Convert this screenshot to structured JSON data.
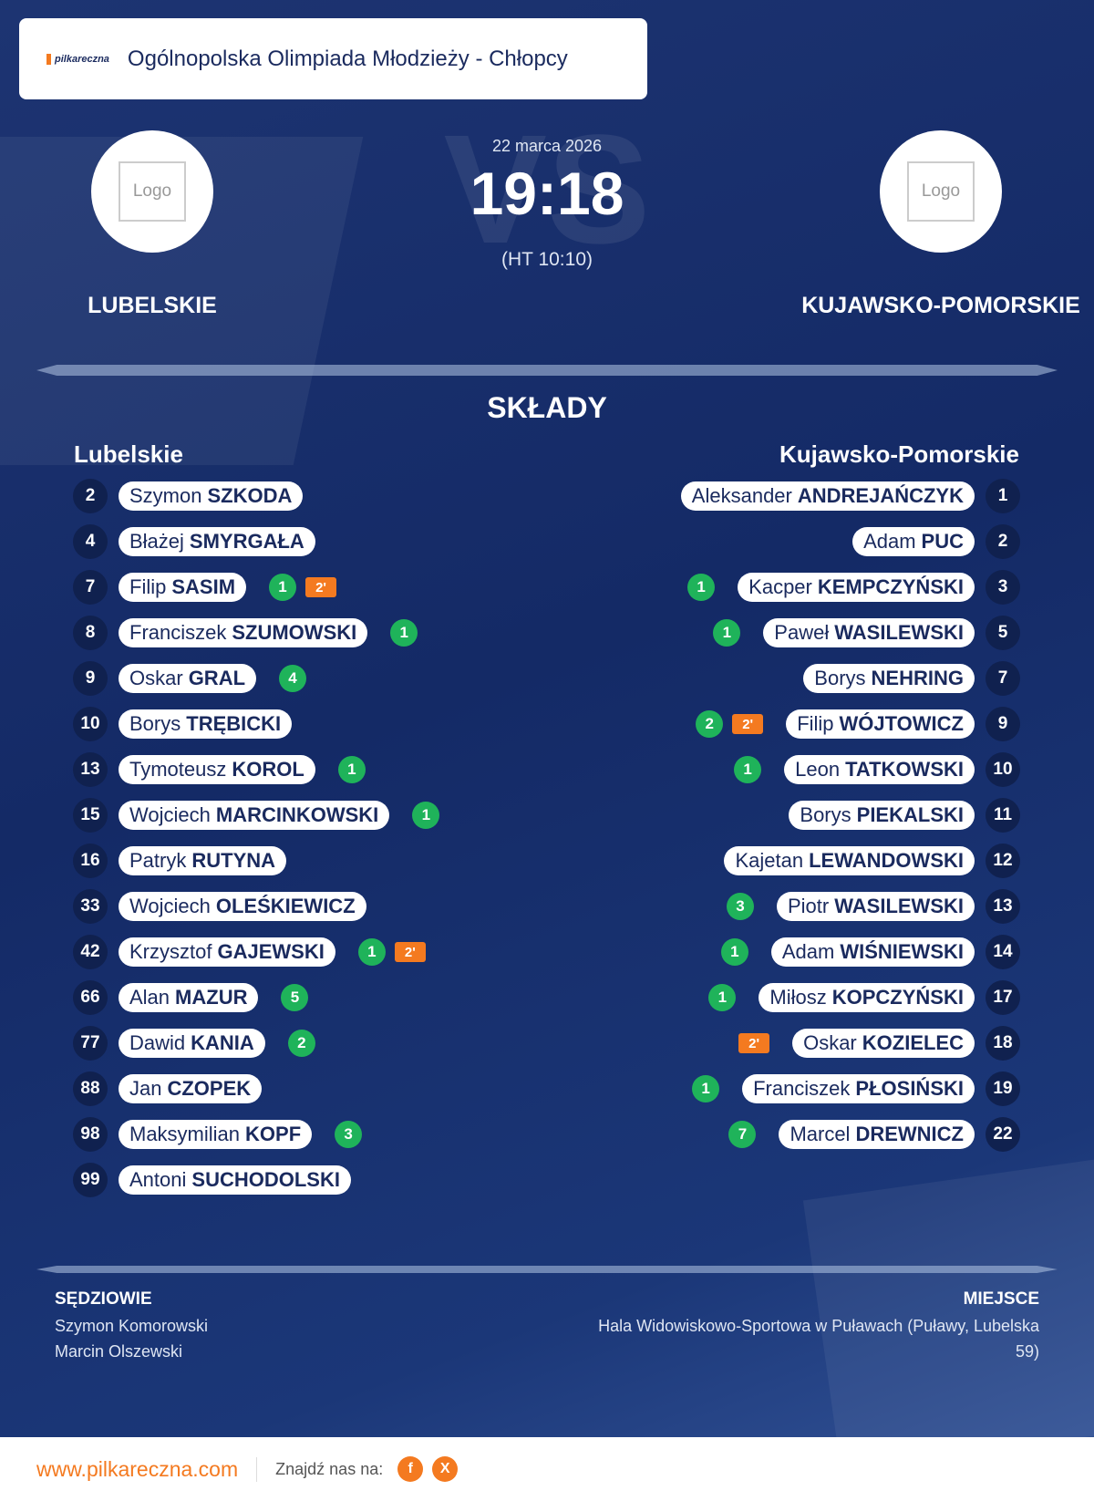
{
  "header": {
    "brand": "pilkareczna",
    "title": "Ogólnopolska Olimpiada Młodzieży - Chłopcy"
  },
  "match": {
    "date": "22 marca 2026",
    "score": "19:18",
    "halftime": "(HT 10:10)",
    "watermark": "VS",
    "home": {
      "name": "LUBELSKIE",
      "logo": "Logo"
    },
    "away": {
      "name": "KUJAWSKO-POMORSKIE",
      "logo": "Logo"
    }
  },
  "lineups": {
    "title": "SKŁADY",
    "home": {
      "team": "Lubelskie",
      "players": [
        {
          "number": 2,
          "first": "Szymon",
          "last": "SZKODA"
        },
        {
          "number": 4,
          "first": "Błażej",
          "last": "SMYRGAŁA"
        },
        {
          "number": 7,
          "first": "Filip",
          "last": "SASIM",
          "goals": 1,
          "penalty": "2'"
        },
        {
          "number": 8,
          "first": "Franciszek",
          "last": "SZUMOWSKI",
          "goals": 1
        },
        {
          "number": 9,
          "first": "Oskar",
          "last": "GRAL",
          "goals": 4
        },
        {
          "number": 10,
          "first": "Borys",
          "last": "TRĘBICKI"
        },
        {
          "number": 13,
          "first": "Tymoteusz",
          "last": "KOROL",
          "goals": 1
        },
        {
          "number": 15,
          "first": "Wojciech",
          "last": "MARCINKOWSKI",
          "goals": 1
        },
        {
          "number": 16,
          "first": "Patryk",
          "last": "RUTYNA"
        },
        {
          "number": 33,
          "first": "Wojciech",
          "last": "OLEŚKIEWICZ"
        },
        {
          "number": 42,
          "first": "Krzysztof",
          "last": "GAJEWSKI",
          "goals": 1,
          "penalty": "2'"
        },
        {
          "number": 66,
          "first": "Alan",
          "last": "MAZUR",
          "goals": 5
        },
        {
          "number": 77,
          "first": "Dawid",
          "last": "KANIA",
          "goals": 2
        },
        {
          "number": 88,
          "first": "Jan",
          "last": "CZOPEK"
        },
        {
          "number": 98,
          "first": "Maksymilian",
          "last": "KOPF",
          "goals": 3
        },
        {
          "number": 99,
          "first": "Antoni",
          "last": "SUCHODOLSKI"
        }
      ]
    },
    "away": {
      "team": "Kujawsko-Pomorskie",
      "players": [
        {
          "number": 1,
          "first": "Aleksander",
          "last": "ANDREJAŃCZYK"
        },
        {
          "number": 2,
          "first": "Adam",
          "last": "PUC"
        },
        {
          "number": 3,
          "first": "Kacper",
          "last": "KEMPCZYŃSKI",
          "goals": 1
        },
        {
          "number": 5,
          "first": "Paweł",
          "last": "WASILEWSKI",
          "goals": 1
        },
        {
          "number": 7,
          "first": "Borys",
          "last": "NEHRING"
        },
        {
          "number": 9,
          "first": "Filip",
          "last": "WÓJTOWICZ",
          "goals": 2,
          "penalty": "2'"
        },
        {
          "number": 10,
          "first": "Leon",
          "last": "TATKOWSKI",
          "goals": 1
        },
        {
          "number": 11,
          "first": "Borys",
          "last": "PIEKALSKI"
        },
        {
          "number": 12,
          "first": "Kajetan",
          "last": "LEWANDOWSKI"
        },
        {
          "number": 13,
          "first": "Piotr",
          "last": "WASILEWSKI",
          "goals": 3
        },
        {
          "number": 14,
          "first": "Adam",
          "last": "WIŚNIEWSKI",
          "goals": 1
        },
        {
          "number": 17,
          "first": "Miłosz",
          "last": "KOPCZYŃSKI",
          "goals": 1
        },
        {
          "number": 18,
          "first": "Oskar",
          "last": "KOZIELEC",
          "penalty": "2'"
        },
        {
          "number": 19,
          "first": "Franciszek",
          "last": "PŁOSIŃSKI",
          "goals": 1
        },
        {
          "number": 22,
          "first": "Marcel",
          "last": "DREWNICZ",
          "goals": 7
        }
      ]
    }
  },
  "officials": {
    "label": "SĘDZIOWIE",
    "names": [
      "Szymon Komorowski",
      "Marcin Olszewski"
    ]
  },
  "venue": {
    "label": "MIEJSCE",
    "text": "Hala Widowiskowo-Sportowa w Puławach (Puławy, Lubelska 59)"
  },
  "footer": {
    "website": "www.pilkareczna.com",
    "social_label": "Znajdź nas na:",
    "social": [
      "f",
      "X"
    ]
  }
}
